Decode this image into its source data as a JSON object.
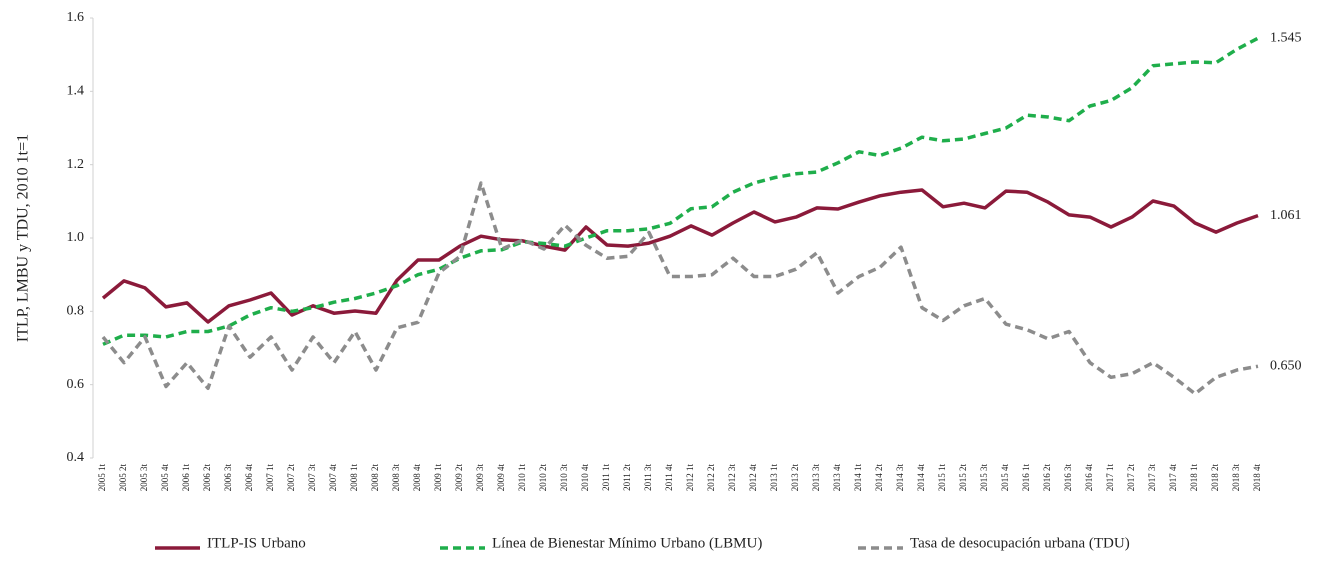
{
  "chart_data": {
    "type": "line",
    "ylabel": "ITLP, LMBU y TDU, 2010 1t=1",
    "categories": [
      "2005 1t",
      "2005 2t",
      "2005 3t",
      "2005 4t",
      "2006 1t",
      "2006 2t",
      "2006 3t",
      "2006 4t",
      "2007 1t",
      "2007 2t",
      "2007 3t",
      "2007 4t",
      "2008 1t",
      "2008 2t",
      "2008 3t",
      "2008 4t",
      "2009 1t",
      "2009 2t",
      "2009 3t",
      "2009 4t",
      "2010 1t",
      "2010 2t",
      "2010 3t",
      "2010 4t",
      "2011 1t",
      "2011 2t",
      "2011 3t",
      "2011 4t",
      "2012 1t",
      "2012 2t",
      "2012 3t",
      "2012 4t",
      "2013 1t",
      "2013 2t",
      "2013 3t",
      "2013 4t",
      "2014 1t",
      "2014 2t",
      "2014 3t",
      "2014 4t",
      "2015 1t",
      "2015 2t",
      "2015 3t",
      "2015 4t",
      "2016 1t",
      "2016 2t",
      "2016 3t",
      "2016 4t",
      "2017 1t",
      "2017 2t",
      "2017 3t",
      "2017 4t",
      "2018 1t",
      "2018 2t",
      "2018 3t",
      "2018 4t"
    ],
    "series": [
      {
        "name": "ITLP-IS Urbano",
        "color": "#8b1a3a",
        "dashed": false,
        "values": [
          0.836,
          0.883,
          0.864,
          0.812,
          0.823,
          0.771,
          0.815,
          0.831,
          0.85,
          0.79,
          0.815,
          0.795,
          0.801,
          0.795,
          0.885,
          0.94,
          0.94,
          0.978,
          1.005,
          0.995,
          0.992,
          0.978,
          0.967,
          1.03,
          0.981,
          0.978,
          0.986,
          1.005,
          1.033,
          1.008,
          1.041,
          1.071,
          1.044,
          1.057,
          1.082,
          1.079,
          1.098,
          1.115,
          1.125,
          1.131,
          1.085,
          1.095,
          1.082,
          1.128,
          1.125,
          1.098,
          1.063,
          1.057,
          1.03,
          1.057,
          1.101,
          1.087,
          1.041,
          1.016,
          1.041,
          1.061
        ],
        "value_labels": [
          null,
          null,
          null,
          null,
          null,
          null,
          null,
          null,
          null,
          null,
          null,
          null,
          null,
          null,
          null,
          null,
          null,
          null,
          null,
          null,
          null,
          null,
          null,
          null,
          null,
          null,
          null,
          null,
          null,
          null,
          null,
          null,
          null,
          null,
          null,
          null,
          null,
          null,
          null,
          null,
          null,
          null,
          null,
          null,
          null,
          null,
          null,
          null,
          null,
          null,
          null,
          null,
          null,
          null,
          null,
          "1.061"
        ]
      },
      {
        "name": "Línea de Bienestar Mínimo Urbano (LBMU)",
        "color": "#1fae4b",
        "dashed": true,
        "values": [
          0.71,
          0.735,
          0.735,
          0.73,
          0.745,
          0.745,
          0.76,
          0.79,
          0.81,
          0.8,
          0.81,
          0.825,
          0.835,
          0.85,
          0.87,
          0.9,
          0.915,
          0.945,
          0.965,
          0.968,
          0.99,
          0.985,
          0.978,
          1.0,
          1.02,
          1.02,
          1.025,
          1.04,
          1.08,
          1.085,
          1.125,
          1.15,
          1.165,
          1.175,
          1.18,
          1.205,
          1.235,
          1.225,
          1.245,
          1.275,
          1.265,
          1.27,
          1.285,
          1.3,
          1.335,
          1.33,
          1.32,
          1.36,
          1.375,
          1.41,
          1.47,
          1.475,
          1.48,
          1.478,
          1.515,
          1.545
        ],
        "value_labels": [
          null,
          null,
          null,
          null,
          null,
          null,
          null,
          null,
          null,
          null,
          null,
          null,
          null,
          null,
          null,
          null,
          null,
          null,
          null,
          null,
          null,
          null,
          null,
          null,
          null,
          null,
          null,
          null,
          null,
          null,
          null,
          null,
          null,
          null,
          null,
          null,
          null,
          null,
          null,
          null,
          null,
          null,
          null,
          null,
          null,
          null,
          null,
          null,
          null,
          null,
          null,
          null,
          null,
          null,
          null,
          "1.545"
        ]
      },
      {
        "name": "Tasa de desocupación urbana (TDU)",
        "color": "#8c8c8c",
        "dashed": true,
        "values": [
          0.73,
          0.66,
          0.73,
          0.595,
          0.66,
          0.59,
          0.76,
          0.675,
          0.73,
          0.64,
          0.73,
          0.66,
          0.745,
          0.64,
          0.755,
          0.77,
          0.905,
          0.95,
          1.15,
          0.97,
          0.995,
          0.97,
          1.035,
          0.98,
          0.945,
          0.95,
          1.015,
          0.895,
          0.895,
          0.9,
          0.945,
          0.895,
          0.895,
          0.915,
          0.96,
          0.85,
          0.895,
          0.92,
          0.975,
          0.81,
          0.775,
          0.815,
          0.835,
          0.765,
          0.75,
          0.725,
          0.745,
          0.66,
          0.62,
          0.63,
          0.66,
          0.62,
          0.575,
          0.62,
          0.64,
          0.65
        ],
        "value_labels": [
          null,
          null,
          null,
          null,
          null,
          null,
          null,
          null,
          null,
          null,
          null,
          null,
          null,
          null,
          null,
          null,
          null,
          null,
          null,
          null,
          null,
          null,
          null,
          null,
          null,
          null,
          null,
          null,
          null,
          null,
          null,
          null,
          null,
          null,
          null,
          null,
          null,
          null,
          null,
          null,
          null,
          null,
          null,
          null,
          null,
          null,
          null,
          null,
          null,
          null,
          null,
          null,
          null,
          null,
          null,
          "0.650"
        ]
      }
    ],
    "ylim": [
      0.4,
      1.6
    ],
    "yticks": [
      0.4,
      0.6,
      0.8,
      {
        "value": 1,
        "label": "1.0"
      },
      1.2,
      1.4,
      1.6
    ],
    "grid": false
  }
}
